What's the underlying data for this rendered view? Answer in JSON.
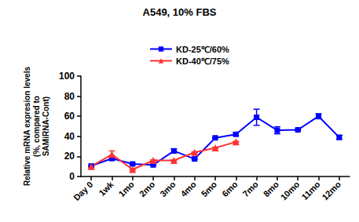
{
  "chart_data": {
    "type": "line",
    "title": "A549, 10% FBS",
    "y_label": "Relative mRNA expresion levels\n(%, compared to\nSAMiRNA-Cont)",
    "categories": [
      "Day 0",
      "1wk",
      "1mo",
      "2mo",
      "3mo",
      "4mo",
      "5mo",
      "6mo",
      "7mo",
      "8mo",
      "10mo",
      "11mo",
      "12mo"
    ],
    "series": [
      {
        "name": "KD-25℃/60%",
        "color": "#0000ff",
        "marker": "square",
        "line_style": "solid",
        "values": [
          10.5,
          18,
          12.5,
          11.5,
          25.5,
          17.5,
          38.5,
          42,
          59,
          46,
          46.5,
          60,
          39
        ],
        "errors": [
          0.8,
          2,
          0.6,
          0.6,
          2,
          0.8,
          0.6,
          1.5,
          8,
          3.5,
          0.6,
          2.5,
          2
        ]
      },
      {
        "name": "KD-40℃/75%",
        "color": "#ff3333",
        "marker": "triangle",
        "line_style": "solid",
        "values": [
          10,
          22,
          7,
          16,
          16,
          24,
          28.5,
          34.5,
          null,
          null,
          null,
          null,
          null
        ],
        "errors": [
          0.6,
          3.5,
          0.6,
          0.6,
          0.6,
          0.6,
          0.6,
          0.6,
          null,
          null,
          null,
          null,
          null
        ]
      }
    ],
    "ylim": [
      0,
      100
    ],
    "yticks": [
      0,
      20,
      40,
      60,
      80,
      100
    ],
    "grid": false,
    "legend": "top"
  }
}
